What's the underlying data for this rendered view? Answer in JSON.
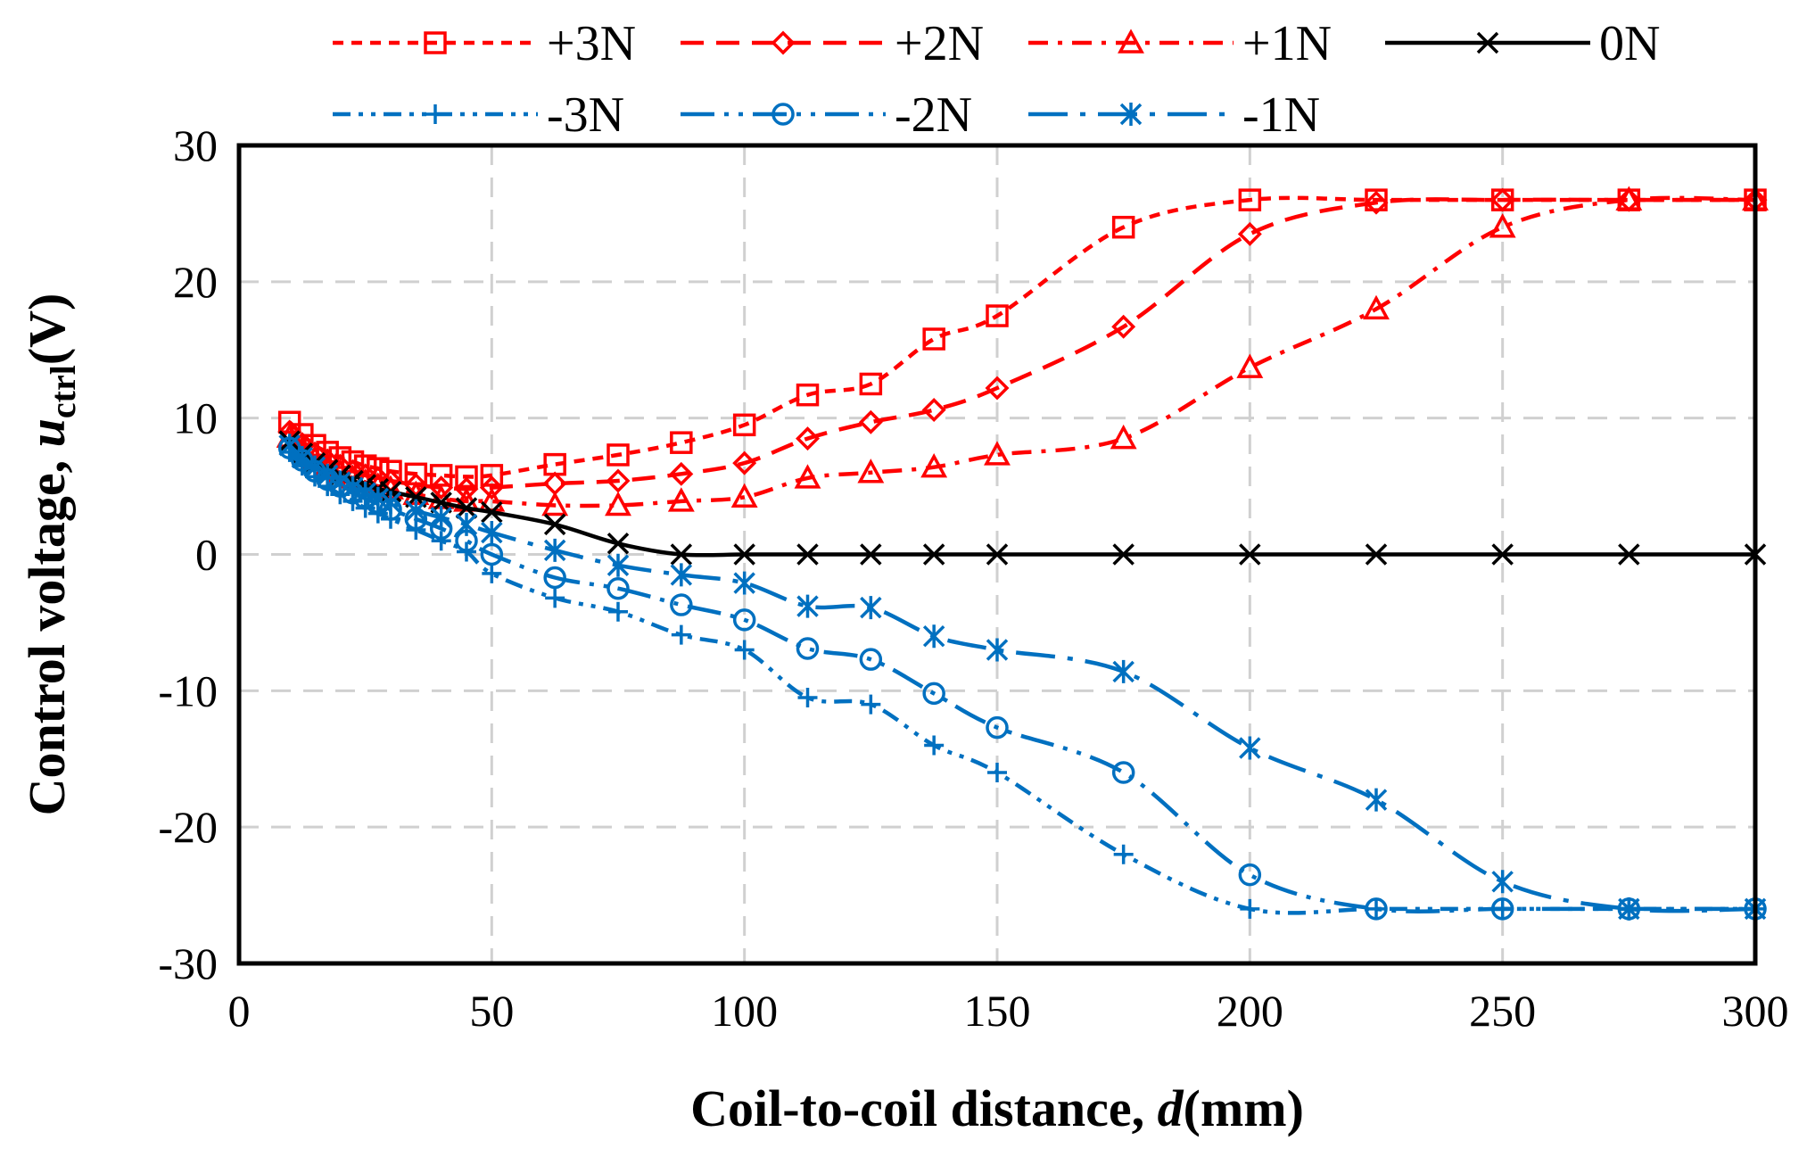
{
  "chart_data": {
    "type": "line",
    "xlabel": {
      "prefix": "Coil-to-coil distance, ",
      "var": "d",
      "suffix": "(mm)"
    },
    "ylabel": {
      "prefix": "Control voltage, ",
      "var": "u",
      "sub": "ctrl",
      "suffix": "(V)"
    },
    "xlim": [
      0,
      300
    ],
    "ylim": [
      -30,
      30
    ],
    "xticks": [
      "0",
      "50",
      "100",
      "150",
      "200",
      "250",
      "300"
    ],
    "yticks": [
      "-30",
      "-20",
      "-10",
      "0",
      "10",
      "20",
      "30"
    ],
    "grid": true,
    "legend_position": "top",
    "series": [
      {
        "name": "+3N",
        "color": "#ff0000",
        "dash": "short-dash",
        "marker": "square",
        "x": [
          10,
          12.5,
          15,
          17.5,
          20,
          22.5,
          25,
          27.5,
          30,
          35,
          40,
          45,
          50,
          62.5,
          75,
          87.5,
          100,
          112.5,
          125,
          137.5,
          150,
          175,
          200,
          225,
          250,
          275,
          300
        ],
        "y": [
          9.7,
          8.8,
          8.0,
          7.5,
          7.1,
          6.8,
          6.5,
          6.3,
          6.1,
          5.9,
          5.8,
          5.7,
          5.8,
          6.6,
          7.3,
          8.2,
          9.5,
          11.7,
          12.5,
          15.8,
          17.5,
          24.0,
          26.0,
          26.0,
          26.0,
          26.0,
          26.0
        ]
      },
      {
        "name": "+2N",
        "color": "#ff0000",
        "dash": "dash",
        "marker": "diamond",
        "x": [
          10,
          12.5,
          15,
          17.5,
          20,
          22.5,
          25,
          27.5,
          30,
          35,
          40,
          45,
          50,
          62.5,
          75,
          87.5,
          100,
          112.5,
          125,
          137.5,
          150,
          175,
          200,
          225,
          250,
          275,
          300
        ],
        "y": [
          9.0,
          8.1,
          7.4,
          6.9,
          6.5,
          6.1,
          5.8,
          5.6,
          5.4,
          5.1,
          4.9,
          4.8,
          4.9,
          5.2,
          5.4,
          5.9,
          6.7,
          8.5,
          9.7,
          10.6,
          12.2,
          16.7,
          23.5,
          25.8,
          26.0,
          26.0,
          26.0
        ]
      },
      {
        "name": "+1N",
        "color": "#ff0000",
        "dash": "dash-dot",
        "marker": "triangle",
        "x": [
          10,
          12.5,
          15,
          17.5,
          20,
          22.5,
          25,
          27.5,
          30,
          35,
          40,
          45,
          50,
          62.5,
          75,
          87.5,
          100,
          112.5,
          125,
          137.5,
          150,
          175,
          200,
          225,
          250,
          275,
          300
        ],
        "y": [
          8.6,
          7.7,
          7.0,
          6.5,
          6.0,
          5.6,
          5.3,
          5.0,
          4.8,
          4.4,
          4.1,
          3.9,
          3.9,
          3.6,
          3.6,
          3.9,
          4.2,
          5.6,
          6.0,
          6.4,
          7.3,
          8.5,
          13.7,
          18.0,
          24.0,
          26.0,
          26.0
        ]
      },
      {
        "name": "0N",
        "color": "#000000",
        "dash": "solid",
        "marker": "x",
        "x": [
          10,
          12.5,
          15,
          17.5,
          20,
          22.5,
          25,
          27.5,
          30,
          35,
          40,
          45,
          50,
          62.5,
          75,
          87.5,
          100,
          112.5,
          125,
          137.5,
          150,
          175,
          200,
          225,
          250,
          275,
          300
        ],
        "y": [
          8.3,
          7.4,
          6.7,
          6.2,
          5.8,
          5.4,
          5.1,
          4.8,
          4.6,
          4.2,
          3.8,
          3.4,
          3.1,
          2.2,
          0.8,
          0.0,
          0.0,
          0.0,
          0.0,
          0.0,
          0.0,
          0.0,
          0.0,
          0.0,
          0.0,
          0.0,
          0.0
        ]
      },
      {
        "name": "-3N",
        "color": "#0070c0",
        "dash": "dash-dot-dot",
        "marker": "plus",
        "x": [
          10,
          12.5,
          15,
          17.5,
          20,
          22.5,
          25,
          27.5,
          30,
          35,
          40,
          45,
          50,
          62.5,
          75,
          87.5,
          100,
          112.5,
          125,
          137.5,
          150,
          175,
          200,
          225,
          250,
          275,
          300
        ],
        "y": [
          7.5,
          6.5,
          5.7,
          5.0,
          4.4,
          3.9,
          3.4,
          3.0,
          2.6,
          1.8,
          1.0,
          0.2,
          -1.4,
          -3.2,
          -4.2,
          -5.9,
          -7.0,
          -10.5,
          -11.0,
          -14.0,
          -16.0,
          -22.0,
          -26.0,
          -26.0,
          -26.0,
          -26.0,
          -26.0
        ]
      },
      {
        "name": "-2N",
        "color": "#0070c0",
        "dash": "long-dash-dot-dot",
        "marker": "circle",
        "x": [
          10,
          12.5,
          15,
          17.5,
          20,
          22.5,
          25,
          27.5,
          30,
          35,
          40,
          45,
          50,
          62.5,
          75,
          87.5,
          100,
          112.5,
          125,
          137.5,
          150,
          175,
          200,
          225,
          250,
          275,
          300
        ],
        "y": [
          7.8,
          6.9,
          6.1,
          5.5,
          5.0,
          4.5,
          4.1,
          3.7,
          3.3,
          2.6,
          1.9,
          1.0,
          0.0,
          -1.7,
          -2.5,
          -3.7,
          -4.8,
          -6.9,
          -7.7,
          -10.2,
          -12.7,
          -16.0,
          -23.5,
          -26.0,
          -26.0,
          -26.0,
          -26.0
        ]
      },
      {
        "name": "-1N",
        "color": "#0070c0",
        "dash": "long-dash-dot",
        "marker": "asterisk",
        "x": [
          10,
          12.5,
          15,
          17.5,
          20,
          22.5,
          25,
          27.5,
          30,
          35,
          40,
          45,
          50,
          62.5,
          75,
          87.5,
          100,
          112.5,
          125,
          137.5,
          150,
          175,
          200,
          225,
          250,
          275,
          300
        ],
        "y": [
          8.0,
          7.1,
          6.4,
          5.8,
          5.3,
          4.9,
          4.5,
          4.1,
          3.8,
          3.2,
          2.7,
          2.2,
          1.6,
          0.3,
          -0.8,
          -1.5,
          -2.1,
          -3.8,
          -3.9,
          -6.0,
          -7.0,
          -8.6,
          -14.2,
          -18.0,
          -24.0,
          -26.0,
          -26.0
        ]
      }
    ]
  }
}
